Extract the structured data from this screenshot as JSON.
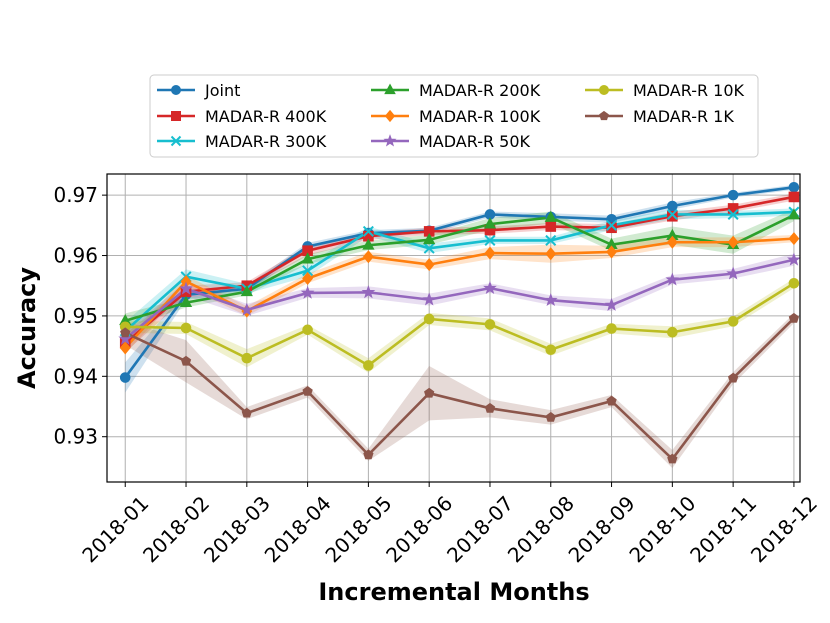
{
  "chart_data": {
    "type": "line",
    "xlabel": "Incremental Months",
    "ylabel": "Accuracy",
    "categories": [
      "2018-01",
      "2018-02",
      "2018-03",
      "2018-04",
      "2018-05",
      "2018-06",
      "2018-07",
      "2018-08",
      "2018-09",
      "2018-10",
      "2018-11",
      "2018-12"
    ],
    "ylim": [
      0.9225,
      0.9735
    ],
    "yticks": [
      0.93,
      0.94,
      0.95,
      0.96,
      0.97
    ],
    "ytick_labels": [
      "0.93",
      "0.94",
      "0.95",
      "0.96",
      "0.97"
    ],
    "grid": true,
    "legend_position": "top",
    "series": [
      {
        "name": "Joint",
        "color": "#1f77b4",
        "marker": "circle",
        "values": [
          0.9398,
          0.9535,
          0.9545,
          0.9615,
          0.9637,
          0.9641,
          0.9668,
          0.9664,
          0.966,
          0.9682,
          0.97,
          0.9713
        ],
        "band": [
          0.0025,
          0.0008,
          0.0006,
          0.0006,
          0.0005,
          0.0005,
          0.0005,
          0.0006,
          0.0006,
          0.0006,
          0.0004,
          0.0004
        ]
      },
      {
        "name": "MADAR-R 400K",
        "color": "#d62728",
        "marker": "square",
        "values": [
          0.9455,
          0.954,
          0.955,
          0.9608,
          0.9632,
          0.964,
          0.9642,
          0.9648,
          0.9646,
          0.9665,
          0.9678,
          0.9697
        ],
        "band": [
          0.0015,
          0.001,
          0.0006,
          0.0008,
          0.0006,
          0.0006,
          0.0006,
          0.0006,
          0.0006,
          0.0007,
          0.0006,
          0.0006
        ]
      },
      {
        "name": "MADAR-R 300K",
        "color": "#17becf",
        "marker": "x",
        "values": [
          0.9475,
          0.9565,
          0.9545,
          0.9575,
          0.964,
          0.9612,
          0.9625,
          0.9625,
          0.965,
          0.9668,
          0.9668,
          0.9672
        ],
        "band": [
          0.0015,
          0.0012,
          0.0008,
          0.001,
          0.0008,
          0.0008,
          0.0006,
          0.0006,
          0.0008,
          0.0008,
          0.0006,
          0.0006
        ]
      },
      {
        "name": "MADAR-R 200K",
        "color": "#2ca02c",
        "marker": "triangle",
        "values": [
          0.9492,
          0.9522,
          0.954,
          0.9594,
          0.9617,
          0.9626,
          0.9652,
          0.9663,
          0.9618,
          0.9633,
          0.9618,
          0.9667
        ],
        "band": [
          0.0012,
          0.0008,
          0.0006,
          0.0008,
          0.0008,
          0.0008,
          0.001,
          0.001,
          0.001,
          0.0015,
          0.0015,
          0.001
        ]
      },
      {
        "name": "MADAR-R 100K",
        "color": "#ff7f0e",
        "marker": "diamond",
        "values": [
          0.9447,
          0.9557,
          0.9508,
          0.9562,
          0.9598,
          0.9585,
          0.9604,
          0.9603,
          0.9606,
          0.9622,
          0.9622,
          0.9628
        ],
        "band": [
          0.001,
          0.001,
          0.0008,
          0.0008,
          0.0008,
          0.0008,
          0.001,
          0.0015,
          0.001,
          0.0008,
          0.0008,
          0.0006
        ]
      },
      {
        "name": "MADAR-R 50K",
        "color": "#9467bd",
        "marker": "star",
        "values": [
          0.9462,
          0.9545,
          0.951,
          0.9538,
          0.9539,
          0.9527,
          0.9546,
          0.9526,
          0.9518,
          0.956,
          0.957,
          0.9593
        ],
        "band": [
          0.001,
          0.0012,
          0.001,
          0.0008,
          0.001,
          0.001,
          0.0008,
          0.0008,
          0.001,
          0.0008,
          0.0008,
          0.001
        ]
      },
      {
        "name": "MADAR-R 10K",
        "color": "#bcbd22",
        "marker": "circle",
        "values": [
          0.9482,
          0.948,
          0.943,
          0.9477,
          0.9418,
          0.9495,
          0.9486,
          0.9444,
          0.9479,
          0.9473,
          0.9491,
          0.9554
        ],
        "band": [
          0.001,
          0.001,
          0.0015,
          0.0008,
          0.0012,
          0.001,
          0.001,
          0.001,
          0.0008,
          0.001,
          0.0008,
          0.0008
        ]
      },
      {
        "name": "MADAR-R 1K",
        "color": "#8c564b",
        "marker": "pentagon",
        "values": [
          0.9472,
          0.9425,
          0.9339,
          0.9375,
          0.927,
          0.9372,
          0.9347,
          0.9332,
          0.9359,
          0.9263,
          0.9397,
          0.9496
        ],
        "band": [
          0.002,
          0.0035,
          0.001,
          0.001,
          0.001,
          0.0045,
          0.0015,
          0.0012,
          0.001,
          0.0015,
          0.001,
          0.0008
        ]
      }
    ]
  }
}
